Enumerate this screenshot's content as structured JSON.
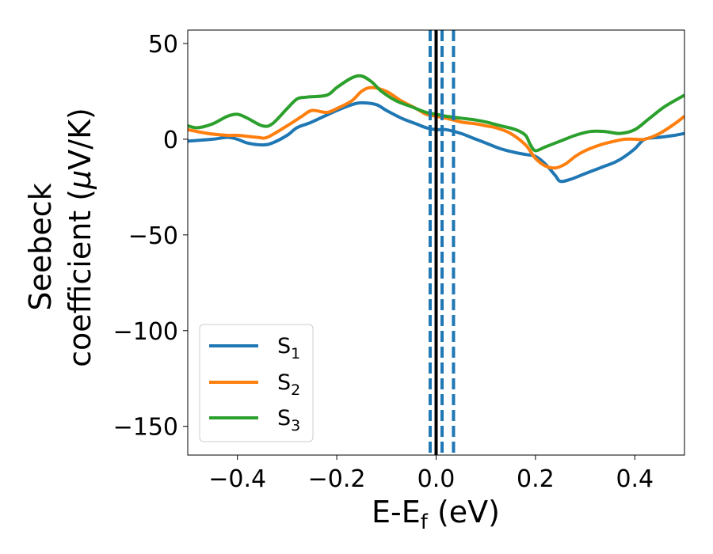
{
  "chart_data": {
    "type": "line",
    "xlabel": {
      "main": "E-E",
      "sub": "f",
      "unit": " (eV)"
    },
    "ylabel": {
      "line1": "Seebeck",
      "line2": "coefficient  (",
      "mu": "μ",
      "line2_end": "V/K)"
    },
    "xlim": [
      -0.5,
      0.5
    ],
    "ylim": [
      -165,
      57
    ],
    "x_ticks": [
      -0.4,
      -0.2,
      0.0,
      0.2,
      0.4
    ],
    "x_tick_labels": [
      "−0.4",
      "−0.2",
      "0.0",
      "0.2",
      "0.4"
    ],
    "y_ticks": [
      50,
      0,
      -50,
      -100,
      -150
    ],
    "y_tick_labels": [
      "50",
      "0",
      "−50",
      "−100",
      "−150"
    ],
    "grid": false,
    "legend_position": "lower-left",
    "series": [
      {
        "name": "S1",
        "label_main": "S",
        "label_sub": "1",
        "color": "#1f77b4",
        "x": [
          -0.5,
          -0.45,
          -0.42,
          -0.4,
          -0.38,
          -0.35,
          -0.33,
          -0.3,
          -0.28,
          -0.25,
          -0.2,
          -0.17,
          -0.15,
          -0.12,
          -0.1,
          -0.07,
          -0.04,
          -0.02,
          0.0,
          0.02,
          0.05,
          0.08,
          0.1,
          0.13,
          0.16,
          0.18,
          0.2,
          0.22,
          0.24,
          0.25,
          0.27,
          0.3,
          0.33,
          0.36,
          0.38,
          0.4,
          0.42,
          0.45,
          0.48,
          0.5
        ],
        "y": [
          -1,
          0,
          1,
          0,
          -2,
          -3,
          -2,
          2,
          6,
          9,
          15,
          18,
          19,
          18,
          15,
          11,
          8,
          6,
          5,
          5,
          3,
          0,
          -2,
          -5,
          -7,
          -8,
          -9,
          -13,
          -19,
          -22,
          -21,
          -18,
          -15,
          -12,
          -9,
          -5,
          0,
          1,
          2,
          3
        ]
      },
      {
        "name": "S2",
        "label_main": "S",
        "label_sub": "2",
        "color": "#ff7f0e",
        "x": [
          -0.5,
          -0.46,
          -0.42,
          -0.4,
          -0.36,
          -0.34,
          -0.3,
          -0.27,
          -0.25,
          -0.22,
          -0.2,
          -0.17,
          -0.15,
          -0.13,
          -0.1,
          -0.07,
          -0.04,
          -0.02,
          0.0,
          0.02,
          0.05,
          0.08,
          0.1,
          0.12,
          0.15,
          0.18,
          0.2,
          0.22,
          0.24,
          0.26,
          0.28,
          0.3,
          0.33,
          0.36,
          0.38,
          0.4,
          0.42,
          0.45,
          0.48,
          0.5
        ],
        "y": [
          5,
          3,
          2,
          2,
          1,
          1,
          7,
          12,
          15,
          14,
          16,
          20,
          25,
          27,
          25,
          20,
          16,
          13,
          12,
          11,
          9,
          8,
          7,
          6,
          3,
          -3,
          -10,
          -14,
          -15,
          -13,
          -9,
          -6,
          -3,
          -1,
          0,
          0,
          0,
          3,
          8,
          12
        ]
      },
      {
        "name": "S3",
        "label_main": "S",
        "label_sub": "3",
        "color": "#2ca02c",
        "x": [
          -0.5,
          -0.48,
          -0.45,
          -0.42,
          -0.4,
          -0.38,
          -0.35,
          -0.33,
          -0.3,
          -0.28,
          -0.26,
          -0.22,
          -0.2,
          -0.17,
          -0.15,
          -0.13,
          -0.11,
          -0.08,
          -0.05,
          -0.02,
          0.0,
          0.02,
          0.05,
          0.08,
          0.1,
          0.13,
          0.16,
          0.18,
          0.19,
          0.2,
          0.22,
          0.25,
          0.28,
          0.31,
          0.34,
          0.37,
          0.4,
          0.43,
          0.46,
          0.5
        ],
        "y": [
          7,
          6,
          8,
          12,
          13,
          11,
          7,
          8,
          16,
          21,
          22,
          23,
          27,
          32,
          33,
          30,
          25,
          20,
          17,
          14,
          13,
          12,
          11,
          10,
          9,
          7,
          5,
          2,
          -3,
          -6,
          -4,
          -1,
          2,
          4,
          4,
          3,
          5,
          11,
          17,
          23
        ]
      }
    ],
    "vlines": [
      {
        "x": 0.0,
        "color": "#000000",
        "style": "solid"
      },
      {
        "x": -0.012,
        "color": "#1f77b4",
        "style": "dashed"
      },
      {
        "x": 0.012,
        "color": "#1f77b4",
        "style": "dashed"
      },
      {
        "x": 0.035,
        "color": "#1f77b4",
        "style": "dashed"
      }
    ]
  }
}
